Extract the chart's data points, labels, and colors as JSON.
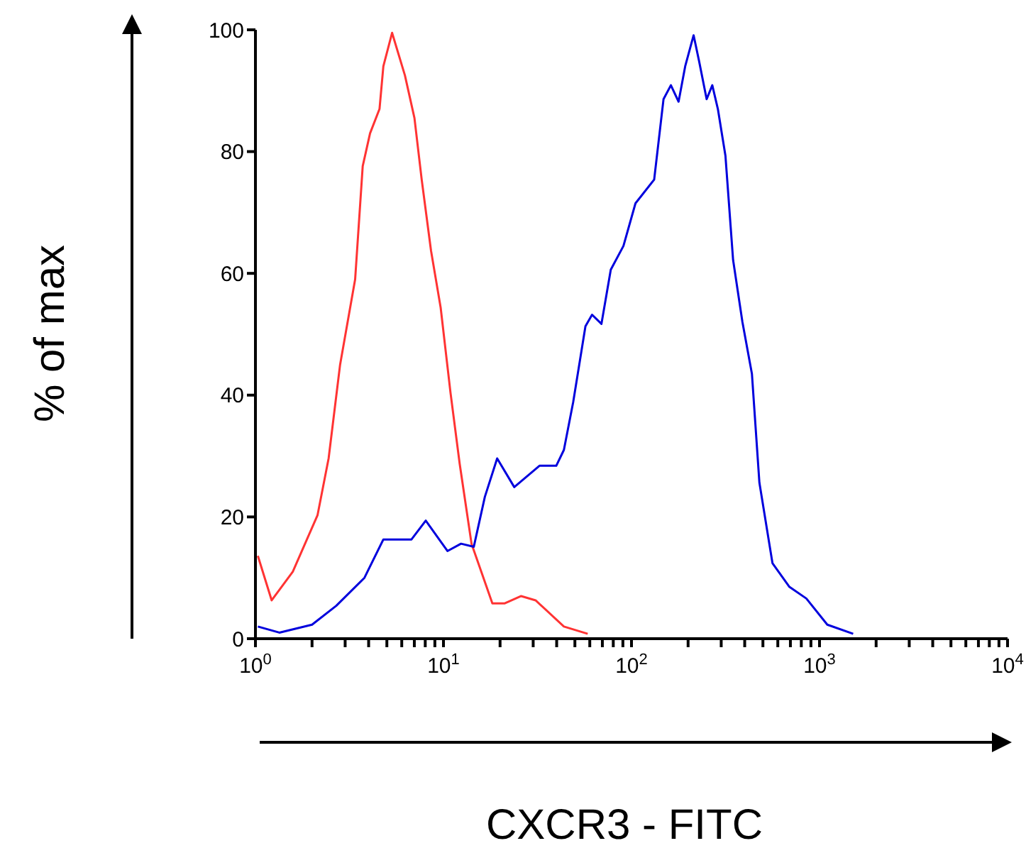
{
  "chart_data": {
    "type": "line",
    "xlabel": "CXCR3 - FITC",
    "ylabel": "% of max",
    "log": "x",
    "grid": false,
    "legend": false,
    "marker": "none",
    "line_style": "solid",
    "xlim": [
      1,
      10000
    ],
    "ylim": [
      0,
      100
    ],
    "yticks": [
      0,
      20,
      40,
      60,
      80,
      100
    ],
    "xticks": [
      {
        "value": 1,
        "label": "10$^{0}$"
      },
      {
        "value": 2,
        "label": null
      },
      {
        "value": 3,
        "label": null
      },
      {
        "value": 4,
        "label": null
      },
      {
        "value": 5,
        "label": null
      },
      {
        "value": 6,
        "label": null
      },
      {
        "value": 7,
        "label": null
      },
      {
        "value": 8,
        "label": null
      },
      {
        "value": 9,
        "label": null
      },
      {
        "value": 10,
        "label": "10$^{1}$"
      },
      {
        "value": 20,
        "label": null
      },
      {
        "value": 30,
        "label": null
      },
      {
        "value": 40,
        "label": null
      },
      {
        "value": 50,
        "label": null
      },
      {
        "value": 60,
        "label": null
      },
      {
        "value": 70,
        "label": null
      },
      {
        "value": 80,
        "label": null
      },
      {
        "value": 90,
        "label": null
      },
      {
        "value": 100,
        "label": "10$^{2}$"
      },
      {
        "value": 200,
        "label": null
      },
      {
        "value": 300,
        "label": null
      },
      {
        "value": 400,
        "label": null
      },
      {
        "value": 500,
        "label": null
      },
      {
        "value": 600,
        "label": null
      },
      {
        "value": 700,
        "label": null
      },
      {
        "value": 800,
        "label": null
      },
      {
        "value": 900,
        "label": null
      },
      {
        "value": 1000,
        "label": "10$^{3}$"
      },
      {
        "value": 2000,
        "label": null
      },
      {
        "value": 3000,
        "label": null
      },
      {
        "value": 4000,
        "label": null
      },
      {
        "value": 5000,
        "label": null
      },
      {
        "value": 6000,
        "label": null
      },
      {
        "value": 7000,
        "label": null
      },
      {
        "value": 8000,
        "label": null
      },
      {
        "value": 9000,
        "label": null
      },
      {
        "value": 10000,
        "label": "10$^{4}$"
      }
    ],
    "series": [
      {
        "color": "#ff3333",
        "x": [
          1.03,
          1.22,
          1.58,
          2.14,
          2.45,
          2.82,
          3.39,
          3.72,
          4.07,
          4.57,
          4.79,
          5.33,
          6.24,
          7.01,
          7.66,
          8.59,
          9.66,
          10.9,
          12.2,
          14.1,
          18.2,
          21.2,
          25.9,
          30.9,
          43.7,
          58.5
        ],
        "values": [
          13.6,
          6.3,
          11,
          20.3,
          29.6,
          45,
          59,
          77.6,
          83,
          87,
          94,
          99.5,
          92.5,
          85.5,
          75.4,
          63.7,
          54.4,
          40.4,
          28.7,
          15.6,
          5.8,
          5.8,
          7,
          6.3,
          2,
          0.8
        ]
      },
      {
        "color": "#0000dd",
        "x": [
          1.03,
          1.34,
          2.0,
          2.69,
          3.8,
          4.79,
          6.76,
          8.05,
          10.5,
          12.4,
          14.5,
          16.6,
          19.3,
          23.8,
          32.4,
          39.8,
          43.7,
          49.0,
          56.9,
          61.7,
          69.2,
          77.6,
          90.6,
          105,
          132,
          148,
          162,
          178,
          193,
          214,
          229,
          251,
          269,
          288,
          316,
          347,
          389,
          437,
          479,
          562,
          692,
          851,
          1100,
          1510
        ],
        "values": [
          2,
          1,
          2.3,
          5.4,
          10,
          16.3,
          16.3,
          19.4,
          14.4,
          15.6,
          15.1,
          23.3,
          29.6,
          24.9,
          28.4,
          28.4,
          31,
          38.9,
          51.3,
          53.2,
          51.7,
          60.6,
          64.5,
          71.5,
          75.4,
          88.6,
          90.9,
          88.2,
          94,
          99.1,
          94.8,
          88.6,
          90.9,
          87,
          79.3,
          62.2,
          52,
          43.5,
          25.6,
          12.4,
          8.5,
          6.6,
          2.3,
          0.8
        ]
      }
    ]
  }
}
